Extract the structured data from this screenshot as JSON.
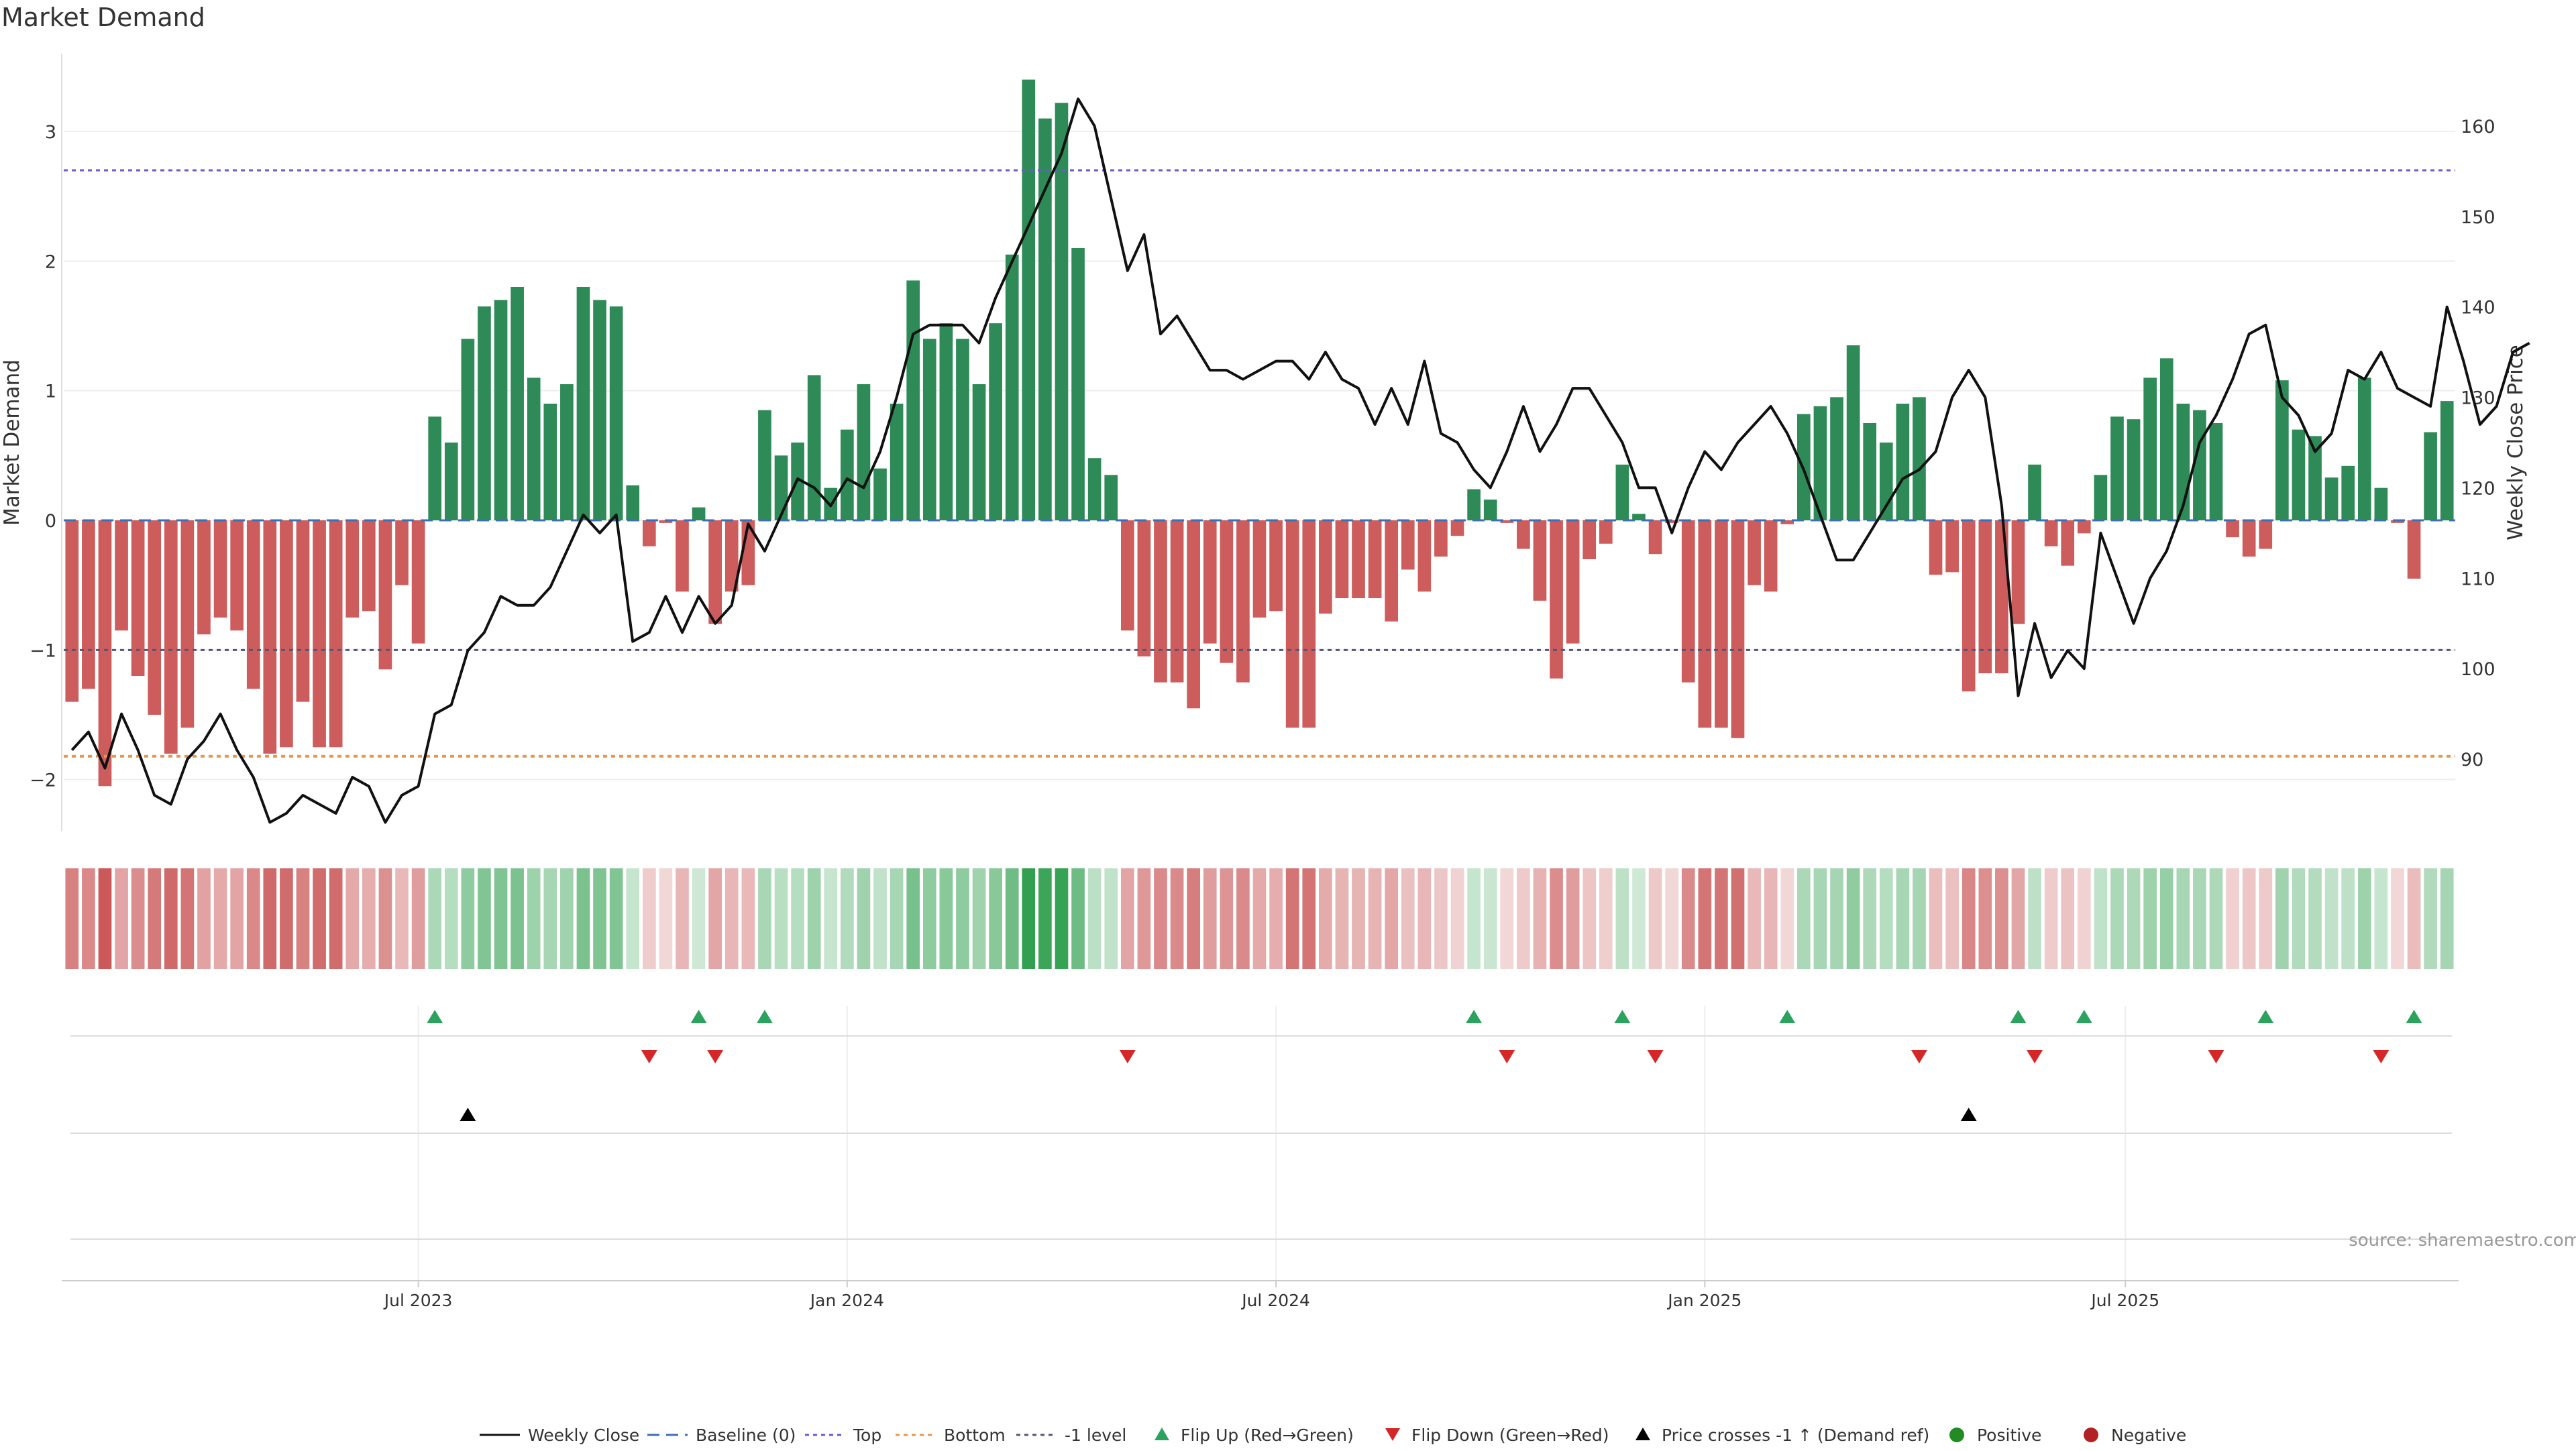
{
  "chart_data": {
    "type": "bar",
    "title": "Market Demand",
    "ylabel": "Market Demand",
    "y2label": "Weekly Close Price",
    "ylim": [
      -2.4,
      3.6
    ],
    "y2lim": [
      82,
      168
    ],
    "yticks": [
      3,
      2,
      1,
      0,
      -1,
      -2
    ],
    "yticklabels": [
      "3",
      "2",
      "1",
      "0",
      "−1",
      "−2"
    ],
    "y2ticks": [
      160,
      150,
      140,
      130,
      120,
      110,
      100,
      90
    ],
    "xticklabels": [
      "Jul 2023",
      "Jan 2024",
      "Jul 2024",
      "Jan 2025",
      "Jul 2025"
    ],
    "xtick_positions": [
      21.5,
      47.5,
      73.5,
      99.5,
      125
    ],
    "reference_lines": {
      "top": 2.7,
      "bottom": -1.82,
      "minus_one": -1.0,
      "baseline": 0
    },
    "colors": {
      "positive": "#2e8b57",
      "negative": "#cd5c5c",
      "price": "#111111",
      "top": "#6a5acd",
      "bottom": "#e8964a",
      "minus_one": "#555577",
      "flip_up": "#2ca25f",
      "flip_down": "#d62728",
      "crosses": "#000000",
      "pos_dot": "#228b22",
      "neg_dot": "#b22222"
    },
    "demand": [
      -1.4,
      -1.3,
      -2.05,
      -0.85,
      -1.2,
      -1.5,
      -1.8,
      -1.6,
      -0.88,
      -0.75,
      -0.85,
      -1.3,
      -1.8,
      -1.75,
      -1.4,
      -1.75,
      -1.75,
      -0.75,
      -0.7,
      -1.15,
      -0.5,
      -0.95,
      0.8,
      0.6,
      1.4,
      1.65,
      1.7,
      1.8,
      1.1,
      0.9,
      1.05,
      1.8,
      1.7,
      1.65,
      0.27,
      -0.2,
      -0.02,
      -0.55,
      0.1,
      -0.8,
      -0.55,
      -0.5,
      0.85,
      0.5,
      0.6,
      1.12,
      0.25,
      0.7,
      1.05,
      0.4,
      0.9,
      1.85,
      1.4,
      1.52,
      1.4,
      1.05,
      1.52,
      2.05,
      3.4,
      3.1,
      3.22,
      2.1,
      0.48,
      0.35,
      -0.85,
      -1.05,
      -1.25,
      -1.25,
      -1.45,
      -0.95,
      -1.1,
      -1.25,
      -0.75,
      -0.7,
      -1.6,
      -1.6,
      -0.72,
      -0.6,
      -0.6,
      -0.6,
      -0.78,
      -0.38,
      -0.55,
      -0.28,
      -0.12,
      0.24,
      0.16,
      -0.02,
      -0.22,
      -0.62,
      -1.22,
      -0.95,
      -0.3,
      -0.18,
      0.43,
      0.05,
      -0.26,
      -0.02,
      -1.25,
      -1.6,
      -1.6,
      -1.68,
      -0.5,
      -0.55,
      -0.03,
      0.82,
      0.88,
      0.95,
      1.35,
      0.75,
      0.6,
      0.9,
      0.95,
      -0.42,
      -0.4,
      -1.32,
      -1.18,
      -1.18,
      -0.8,
      0.43,
      -0.2,
      -0.35,
      -0.1,
      0.35,
      0.8,
      0.78,
      1.1,
      1.25,
      0.9,
      0.85,
      0.75,
      -0.13,
      -0.28,
      -0.22,
      1.08,
      0.7,
      0.65,
      0.33,
      0.42,
      1.1,
      0.25,
      -0.02,
      -0.45,
      0.68,
      0.92
    ],
    "price": [
      91,
      93,
      89,
      95,
      91,
      86,
      85,
      90,
      92,
      95,
      91,
      88,
      83,
      84,
      86,
      85,
      84,
      88,
      87,
      83,
      86,
      87,
      95,
      96,
      102,
      104,
      108,
      107,
      107,
      109,
      113,
      117,
      115,
      117,
      103,
      104,
      108,
      104,
      108,
      105,
      107,
      116,
      113,
      117,
      121,
      120,
      118,
      121,
      120,
      124,
      130,
      137,
      138,
      138,
      138,
      136,
      141,
      145,
      149,
      153,
      157,
      163,
      160,
      152,
      144,
      148,
      137,
      139,
      136,
      133,
      133,
      132,
      133,
      134,
      134,
      132,
      135,
      132,
      131,
      127,
      131,
      127,
      134,
      126,
      125,
      122,
      120,
      124,
      129,
      124,
      127,
      131,
      131,
      128,
      125,
      120,
      120,
      115,
      120,
      124,
      122,
      125,
      127,
      129,
      126,
      122,
      117,
      112,
      112,
      115,
      118,
      121,
      122,
      124,
      130,
      133,
      130,
      118,
      97,
      105,
      99,
      102,
      100,
      115,
      110,
      105,
      110,
      113,
      118,
      125,
      128,
      132,
      137,
      138,
      130,
      128,
      124,
      126,
      133,
      132,
      135,
      131,
      130,
      129,
      140,
      134,
      127,
      129,
      135,
      136
    ],
    "flip_up": [
      22,
      38,
      42,
      85,
      94,
      104,
      118,
      122,
      133,
      142
    ],
    "flip_down": [
      35,
      39,
      64,
      87,
      96,
      112,
      119,
      130,
      140
    ],
    "price_crosses_up": [
      24,
      115
    ],
    "legend": [
      "Weekly Close",
      "Baseline (0)",
      "Top",
      "Bottom",
      "-1 level",
      "Flip Up (Red→Green)",
      "Flip Down (Green→Red)",
      "Price crosses -1 ↑ (Demand ref)",
      "Positive",
      "Negative"
    ]
  },
  "source_note": "source: sharemaestro.com"
}
